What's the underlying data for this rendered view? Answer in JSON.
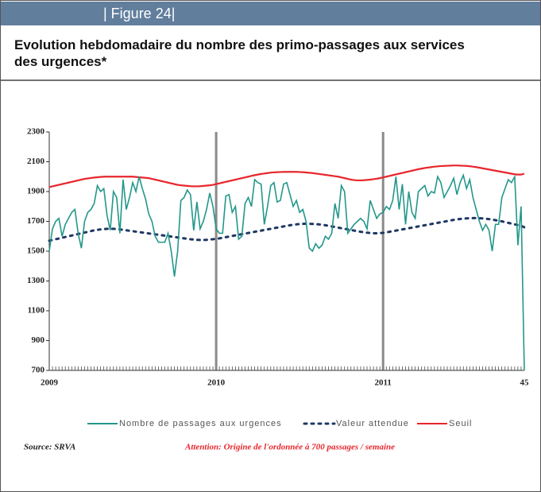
{
  "header": {
    "figure": "| Figure 24|"
  },
  "chart_data": {
    "type": "line",
    "title": "Evolution hebdomadaire du nombre des primo-passages aux services des urgences*",
    "categories": [
      "2009",
      null,
      null,
      null,
      null,
      null,
      null,
      null,
      null,
      null,
      null,
      null,
      null,
      null,
      null,
      null,
      null,
      null,
      null,
      null,
      null,
      null,
      null,
      null,
      null,
      null,
      null,
      null,
      null,
      null,
      null,
      null,
      null,
      null,
      null,
      null,
      null,
      null,
      null,
      null,
      null,
      null,
      null,
      null,
      null,
      null,
      null,
      null,
      null,
      null,
      null,
      null,
      "2010",
      null,
      null,
      null,
      null,
      null,
      null,
      null,
      null,
      null,
      null,
      null,
      null,
      null,
      null,
      null,
      null,
      null,
      null,
      null,
      null,
      null,
      null,
      null,
      null,
      null,
      null,
      null,
      null,
      null,
      null,
      null,
      null,
      null,
      null,
      null,
      null,
      null,
      null,
      null,
      null,
      null,
      null,
      null,
      null,
      null,
      null,
      null,
      null,
      null,
      null,
      null,
      "2011",
      null,
      null,
      null,
      null,
      null,
      null,
      null,
      null,
      null,
      null,
      null,
      null,
      null,
      null,
      null,
      null,
      null,
      null,
      null,
      null,
      null,
      null,
      null,
      null,
      null,
      null,
      null,
      null,
      null,
      null,
      null,
      null,
      null,
      null,
      null,
      null,
      null,
      null,
      null,
      null,
      null,
      null,
      null,
      "45"
    ],
    "series": [
      {
        "name": "Nombre de passages aux urgences",
        "color": "#23978a",
        "style": "solid",
        "values": [
          1500,
          1650,
          1700,
          1720,
          1600,
          1680,
          1720,
          1760,
          1780,
          1620,
          1520,
          1700,
          1760,
          1780,
          1820,
          1940,
          1900,
          1920,
          1740,
          1640,
          1900,
          1860,
          1620,
          1980,
          1780,
          1860,
          1960,
          1900,
          2000,
          1920,
          1850,
          1750,
          1700,
          1600,
          1560,
          1560,
          1560,
          1620,
          1500,
          1330,
          1500,
          1840,
          1860,
          1910,
          1880,
          1640,
          1830,
          1650,
          1700,
          1780,
          1890,
          1800,
          1650,
          1620,
          1620,
          1870,
          1880,
          1760,
          1800,
          1580,
          1600,
          1820,
          1860,
          1800,
          1980,
          1960,
          1950,
          1680,
          1800,
          1940,
          1960,
          1830,
          1840,
          1950,
          1960,
          1880,
          1800,
          1840,
          1760,
          1780,
          1700,
          1520,
          1500,
          1550,
          1520,
          1540,
          1600,
          1580,
          1620,
          1820,
          1720,
          1940,
          1900,
          1620,
          1650,
          1680,
          1700,
          1720,
          1700,
          1650,
          1840,
          1780,
          1720,
          1750,
          1760,
          1800,
          1780,
          1840,
          2000,
          1780,
          1950,
          1680,
          1900,
          1760,
          1720,
          1900,
          1920,
          1940,
          1870,
          1900,
          1890,
          2000,
          1960,
          1860,
          1900,
          1940,
          1990,
          1880,
          1960,
          2010,
          1920,
          1980,
          1860,
          1780,
          1700,
          1640,
          1680,
          1640,
          1500,
          1680,
          1680,
          1860,
          1920,
          1980,
          1960,
          2000,
          1540,
          1800,
          700
        ]
      },
      {
        "name": "Valeur attendue",
        "color": "#1f3864",
        "style": "dotted",
        "values": [
          1570,
          1575,
          1580,
          1585,
          1590,
          1595,
          1600,
          1605,
          1610,
          1615,
          1620,
          1625,
          1630,
          1635,
          1640,
          1643,
          1646,
          1648,
          1650,
          1650,
          1650,
          1648,
          1646,
          1643,
          1640,
          1637,
          1634,
          1631,
          1628,
          1625,
          1622,
          1619,
          1616,
          1613,
          1610,
          1607,
          1604,
          1601,
          1598,
          1595,
          1592,
          1589,
          1586,
          1583,
          1580,
          1578,
          1576,
          1575,
          1575,
          1576,
          1578,
          1580,
          1583,
          1586,
          1590,
          1594,
          1598,
          1602,
          1606,
          1610,
          1614,
          1618,
          1622,
          1626,
          1630,
          1634,
          1638,
          1642,
          1646,
          1650,
          1654,
          1658,
          1662,
          1666,
          1670,
          1674,
          1677,
          1680,
          1682,
          1683,
          1684,
          1684,
          1683,
          1682,
          1680,
          1677,
          1674,
          1670,
          1666,
          1662,
          1658,
          1654,
          1650,
          1646,
          1642,
          1638,
          1634,
          1630,
          1627,
          1624,
          1622,
          1620,
          1620,
          1621,
          1623,
          1626,
          1630,
          1634,
          1638,
          1642,
          1646,
          1650,
          1654,
          1658,
          1662,
          1666,
          1670,
          1674,
          1678,
          1682,
          1686,
          1690,
          1694,
          1698,
          1702,
          1706,
          1710,
          1713,
          1716,
          1718,
          1720,
          1721,
          1722,
          1722,
          1721,
          1720,
          1718,
          1715,
          1712,
          1708,
          1704,
          1700,
          1695,
          1690,
          1685,
          1680,
          1675,
          1670,
          1660
        ]
      },
      {
        "name": "Seuil",
        "color": "#e8262c",
        "style": "solid",
        "values": [
          1930,
          1935,
          1940,
          1945,
          1950,
          1955,
          1960,
          1965,
          1970,
          1975,
          1980,
          1985,
          1988,
          1991,
          1994,
          1996,
          1998,
          2000,
          2000,
          2000,
          2000,
          2000,
          2000,
          2000,
          2000,
          2000,
          2000,
          1998,
          1996,
          1994,
          1992,
          1990,
          1985,
          1980,
          1975,
          1970,
          1965,
          1960,
          1955,
          1950,
          1945,
          1942,
          1940,
          1938,
          1936,
          1935,
          1935,
          1936,
          1938,
          1940,
          1942,
          1945,
          1950,
          1955,
          1960,
          1965,
          1970,
          1975,
          1980,
          1985,
          1990,
          1995,
          2000,
          2005,
          2010,
          2014,
          2018,
          2021,
          2024,
          2027,
          2029,
          2030,
          2031,
          2032,
          2032,
          2032,
          2032,
          2032,
          2031,
          2030,
          2028,
          2026,
          2024,
          2021,
          2018,
          2015,
          2012,
          2009,
          2006,
          2003,
          2000,
          1995,
          1990,
          1985,
          1980,
          1977,
          1975,
          1975,
          1976,
          1978,
          1980,
          1983,
          1986,
          1990,
          1995,
          2000,
          2005,
          2010,
          2015,
          2020,
          2025,
          2030,
          2035,
          2040,
          2045,
          2050,
          2054,
          2058,
          2061,
          2064,
          2067,
          2069,
          2071,
          2072,
          2073,
          2074,
          2075,
          2075,
          2074,
          2073,
          2072,
          2070,
          2067,
          2064,
          2060,
          2056,
          2052,
          2048,
          2044,
          2040,
          2036,
          2032,
          2028,
          2024,
          2020,
          2016,
          2014,
          2014,
          2020
        ]
      }
    ],
    "ylim": [
      700,
      2300
    ],
    "yticks": [
      700,
      900,
      1100,
      1300,
      1500,
      1700,
      1900,
      2100,
      2300
    ],
    "grid": false,
    "legend": "bottom",
    "source": "Source: SRVA",
    "note": "Attention: Origine de l'ordonnée à 700 passages / semaine"
  }
}
